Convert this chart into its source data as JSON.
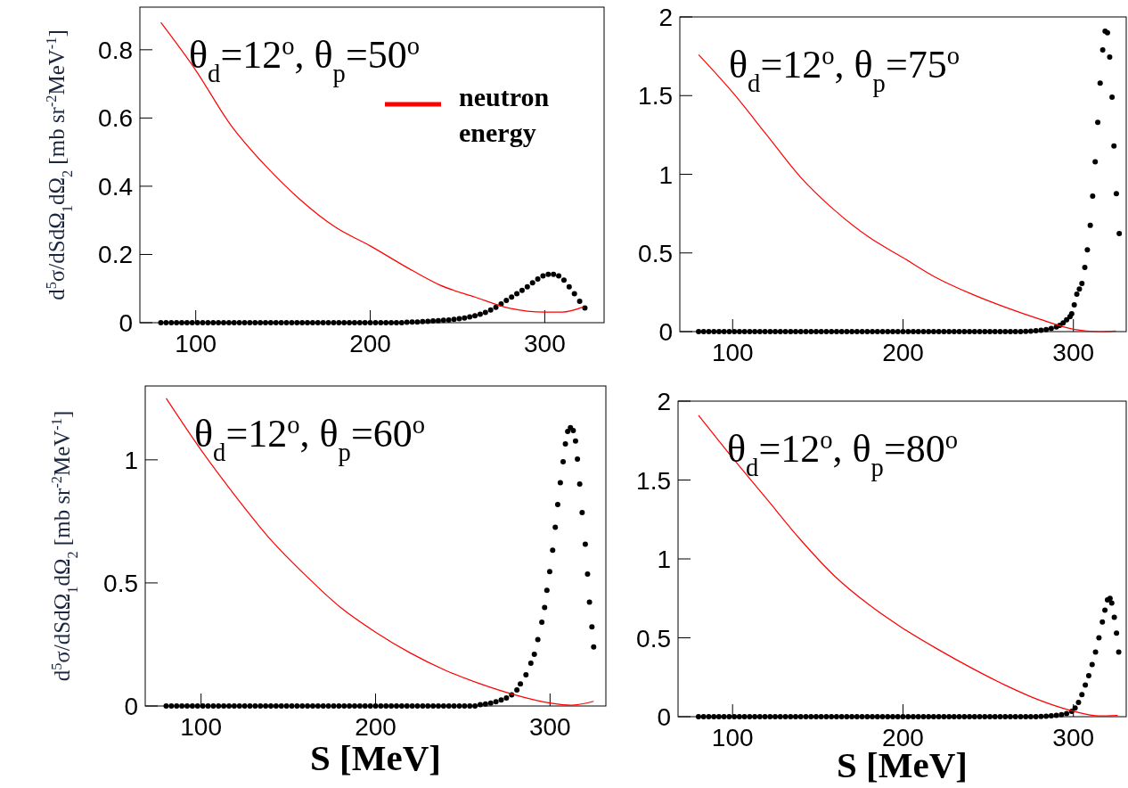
{
  "chart_data": [
    {
      "type": "scatter",
      "title": "θ$_{d}$=12$^{o}$, θ$_{p}$=50$^{o}$",
      "ylabel": "d$^{5}$σ/dSdΩ$_{1}$dΩ$_{2}$ [mb sr$^{-2}$MeV$^{-1}$]",
      "xlim": [
        68,
        334
      ],
      "ylim": [
        0,
        0.925
      ],
      "xticks": [
        100,
        200,
        300
      ],
      "yticks": [
        0,
        0.2,
        0.4,
        0.6,
        0.8
      ],
      "legend": "top right",
      "series": [
        {
          "marker": "circle",
          "color": "#000000",
          "x": [
            80,
            83,
            86,
            89,
            92,
            95,
            98,
            101,
            104,
            107,
            110,
            113,
            116,
            119,
            122,
            125,
            128,
            131,
            134,
            137,
            140,
            143,
            146,
            149,
            152,
            155,
            158,
            161,
            164,
            167,
            170,
            173,
            176,
            179,
            182,
            185,
            188,
            191,
            194,
            197,
            200,
            203,
            206,
            209,
            212,
            215,
            218,
            221,
            224,
            227,
            230,
            233,
            236,
            239,
            242,
            245,
            248,
            251,
            254,
            257,
            260,
            263,
            266,
            269,
            272,
            275,
            278,
            281,
            284,
            287,
            290,
            293,
            296,
            299,
            302,
            305,
            308,
            311,
            314,
            317,
            320,
            323
          ],
          "values": [
            0,
            0,
            0,
            0,
            0,
            0,
            0,
            0,
            0,
            0,
            0,
            0,
            0,
            0,
            0,
            0,
            0,
            0,
            0,
            0,
            0,
            0,
            0,
            0,
            0,
            0,
            0,
            0,
            0,
            0,
            0,
            0,
            0,
            0,
            0,
            0,
            0,
            0,
            0,
            0,
            0,
            0,
            0,
            0,
            0,
            0,
            0,
            0.001,
            0.002,
            0.002,
            0.003,
            0.004,
            0.005,
            0.006,
            0.007,
            0.008,
            0.01,
            0.012,
            0.014,
            0.017,
            0.02,
            0.025,
            0.03,
            0.037,
            0.045,
            0.055,
            0.065,
            0.075,
            0.085,
            0.095,
            0.105,
            0.117,
            0.128,
            0.137,
            0.142,
            0.142,
            0.137,
            0.125,
            0.105,
            0.085,
            0.063,
            0.043
          ]
        },
        {
          "type": "line",
          "name": "neutron energy",
          "color": "#ff0000",
          "x": [
            80,
            100,
            120,
            140,
            160,
            180,
            200,
            220,
            240,
            260,
            280,
            300,
            310,
            322
          ],
          "values": [
            0.88,
            0.74,
            0.58,
            0.46,
            0.36,
            0.28,
            0.225,
            0.165,
            0.11,
            0.075,
            0.042,
            0.031,
            0.031,
            0.046
          ]
        }
      ]
    },
    {
      "type": "scatter",
      "title": "θ$_{d}$=12$^{o}$, θ$_{p}$=75$^{o}$",
      "xlim": [
        69,
        331
      ],
      "ylim": [
        0,
        2
      ],
      "xticks": [
        100,
        200,
        300
      ],
      "yticks": [
        0,
        0.5,
        1,
        1.5,
        2
      ],
      "series": [
        {
          "marker": "circle",
          "color": "#000000",
          "x": [
            80,
            83,
            86,
            89,
            92,
            95,
            98,
            101,
            104,
            107,
            110,
            113,
            116,
            119,
            122,
            125,
            128,
            131,
            134,
            137,
            140,
            143,
            146,
            149,
            152,
            155,
            158,
            161,
            164,
            167,
            170,
            173,
            176,
            179,
            182,
            185,
            188,
            191,
            194,
            197,
            200,
            203,
            206,
            209,
            212,
            215,
            218,
            221,
            224,
            227,
            230,
            233,
            236,
            239,
            242,
            245,
            248,
            251,
            254,
            257,
            260,
            263,
            266,
            269,
            272,
            275,
            278,
            281,
            284,
            287,
            290,
            292,
            294,
            296,
            298,
            299,
            300.5,
            302,
            303.5,
            305,
            306.7,
            308.2,
            309.9,
            311.3,
            312.8,
            314.3,
            315.7,
            317.2,
            318.6,
            320,
            321.3,
            322.7,
            323.8,
            325.2,
            326.9
          ],
          "values": [
            0,
            0,
            0,
            0,
            0,
            0,
            0,
            0,
            0,
            0,
            0,
            0,
            0,
            0,
            0,
            0,
            0,
            0,
            0,
            0,
            0,
            0,
            0,
            0,
            0,
            0,
            0,
            0,
            0,
            0,
            0,
            0,
            0,
            0,
            0,
            0,
            0,
            0,
            0,
            0,
            0,
            0,
            0,
            0,
            0,
            0,
            0,
            0,
            0,
            0,
            0,
            0,
            0,
            0,
            0,
            0,
            0,
            0,
            0,
            0,
            0,
            0,
            0,
            0,
            0.001,
            0.003,
            0.005,
            0.008,
            0.013,
            0.02,
            0.03,
            0.04,
            0.055,
            0.075,
            0.095,
            0.113,
            0.17,
            0.238,
            0.27,
            0.306,
            0.408,
            0.52,
            0.675,
            0.861,
            1.08,
            1.33,
            1.58,
            1.79,
            1.91,
            1.9,
            1.745,
            1.49,
            1.18,
            0.877,
            0.623
          ]
        },
        {
          "type": "line",
          "color": "#ff0000",
          "x": [
            80,
            100,
            120,
            140,
            160,
            180,
            200,
            220,
            240,
            260,
            280,
            300,
            315,
            325
          ],
          "values": [
            1.76,
            1.52,
            1.25,
            0.98,
            0.77,
            0.6,
            0.47,
            0.34,
            0.24,
            0.155,
            0.08,
            0.015,
            0,
            0.004
          ]
        }
      ]
    },
    {
      "type": "scatter",
      "title": "θ$_{d}$=12$^{o}$, θ$_{p}$=60$^{o}$",
      "ylabel": "d$^{5}$σ/dSdΩ$_{1}$dΩ$_{2}$ [mb sr$^{-2}$MeV$^{-1}$]",
      "xlabel": "S [MeV]",
      "xlim": [
        68,
        332
      ],
      "ylim": [
        0,
        1.3
      ],
      "xticks": [
        100,
        200,
        300
      ],
      "yticks": [
        0,
        0.5,
        1
      ],
      "series": [
        {
          "marker": "circle",
          "color": "#000000",
          "x": [
            80,
            83,
            86,
            89,
            92,
            95,
            98,
            101,
            104,
            107,
            110,
            113,
            116,
            119,
            122,
            125,
            128,
            131,
            134,
            137,
            140,
            143,
            146,
            149,
            152,
            155,
            158,
            161,
            164,
            167,
            170,
            173,
            176,
            179,
            182,
            185,
            188,
            191,
            194,
            197,
            200,
            203,
            206,
            209,
            212,
            215,
            218,
            221,
            224,
            227,
            230,
            233,
            236,
            239,
            242,
            245,
            248,
            251,
            254,
            257,
            260,
            263,
            266,
            269,
            272,
            275,
            278,
            281,
            283,
            286.2,
            289,
            291,
            293,
            295.3,
            296.9,
            298.2,
            299.8,
            301.5,
            303,
            304.4,
            305.9,
            307.5,
            308.8,
            310.1,
            311.7,
            313.3,
            314.6,
            315.7,
            317,
            318.4,
            320.2,
            321.5,
            322.6,
            324,
            325
          ],
          "values": [
            0,
            0,
            0,
            0,
            0,
            0,
            0,
            0,
            0,
            0,
            0,
            0,
            0,
            0,
            0,
            0,
            0,
            0,
            0,
            0,
            0,
            0,
            0,
            0,
            0,
            0,
            0,
            0,
            0,
            0,
            0,
            0,
            0,
            0,
            0,
            0,
            0,
            0,
            0,
            0,
            0,
            0,
            0,
            0,
            0,
            0,
            0,
            0,
            0,
            0,
            0,
            0,
            0,
            0,
            0,
            0,
            0,
            0,
            0,
            0,
            0.005,
            0.008,
            0.012,
            0.017,
            0.024,
            0.033,
            0.045,
            0.065,
            0.09,
            0.127,
            0.174,
            0.21,
            0.27,
            0.34,
            0.4,
            0.47,
            0.546,
            0.633,
            0.726,
            0.818,
            0.907,
            0.992,
            1.065,
            1.115,
            1.131,
            1.119,
            1.076,
            1.003,
            0.902,
            0.786,
            0.657,
            0.536,
            0.422,
            0.321,
            0.24
          ]
        },
        {
          "type": "line",
          "color": "#ff0000",
          "x": [
            80,
            100,
            120,
            140,
            160,
            180,
            200,
            220,
            240,
            260,
            280,
            300,
            312,
            325
          ],
          "values": [
            1.25,
            1.04,
            0.85,
            0.675,
            0.53,
            0.4,
            0.3,
            0.215,
            0.145,
            0.09,
            0.045,
            0.012,
            0.003,
            0.019
          ]
        }
      ]
    },
    {
      "type": "scatter",
      "title": "θ$_{d}$=12$^{o}$, θ$_{p}$=80$^{o}$",
      "xlabel": "S [MeV]",
      "xlim": [
        68,
        331
      ],
      "ylim": [
        0,
        2
      ],
      "xticks": [
        100,
        200,
        300
      ],
      "yticks": [
        0,
        0.5,
        1,
        1.5,
        2
      ],
      "series": [
        {
          "marker": "circle",
          "color": "#000000",
          "x": [
            80,
            83,
            86,
            89,
            92,
            95,
            98,
            101,
            104,
            107,
            110,
            113,
            116,
            119,
            122,
            125,
            128,
            131,
            134,
            137,
            140,
            143,
            146,
            149,
            152,
            155,
            158,
            161,
            164,
            167,
            170,
            173,
            176,
            179,
            182,
            185,
            188,
            191,
            194,
            197,
            200,
            203,
            206,
            209,
            212,
            215,
            218,
            221,
            224,
            227,
            230,
            233,
            236,
            239,
            242,
            245,
            248,
            251,
            254,
            257,
            260,
            263,
            266,
            269,
            272,
            275,
            278,
            281,
            284,
            287,
            290,
            293,
            296,
            299,
            301,
            303,
            305,
            307,
            309,
            311,
            313,
            315,
            317,
            318.5,
            320,
            321.5,
            322.5,
            324,
            325.3,
            326.6
          ],
          "values": [
            0,
            0,
            0,
            0,
            0,
            0,
            0,
            0,
            0,
            0,
            0,
            0,
            0,
            0,
            0,
            0,
            0,
            0,
            0,
            0,
            0,
            0,
            0,
            0,
            0,
            0,
            0,
            0,
            0,
            0,
            0,
            0,
            0,
            0,
            0,
            0,
            0,
            0,
            0,
            0,
            0,
            0,
            0,
            0,
            0,
            0,
            0,
            0,
            0,
            0,
            0,
            0,
            0,
            0,
            0,
            0,
            0,
            0,
            0,
            0,
            0,
            0,
            0,
            0,
            0,
            0,
            0,
            0.001,
            0.003,
            0.005,
            0.008,
            0.013,
            0.02,
            0.034,
            0.055,
            0.09,
            0.14,
            0.2,
            0.26,
            0.33,
            0.41,
            0.5,
            0.6,
            0.675,
            0.74,
            0.75,
            0.72,
            0.63,
            0.53,
            0.41
          ]
        },
        {
          "type": "line",
          "color": "#ff0000",
          "x": [
            80,
            100,
            120,
            140,
            160,
            180,
            200,
            220,
            240,
            260,
            280,
            300,
            315,
            326
          ],
          "values": [
            1.91,
            1.64,
            1.38,
            1.12,
            0.89,
            0.71,
            0.56,
            0.43,
            0.31,
            0.2,
            0.105,
            0.035,
            0.005,
            0.008
          ]
        }
      ]
    }
  ]
}
